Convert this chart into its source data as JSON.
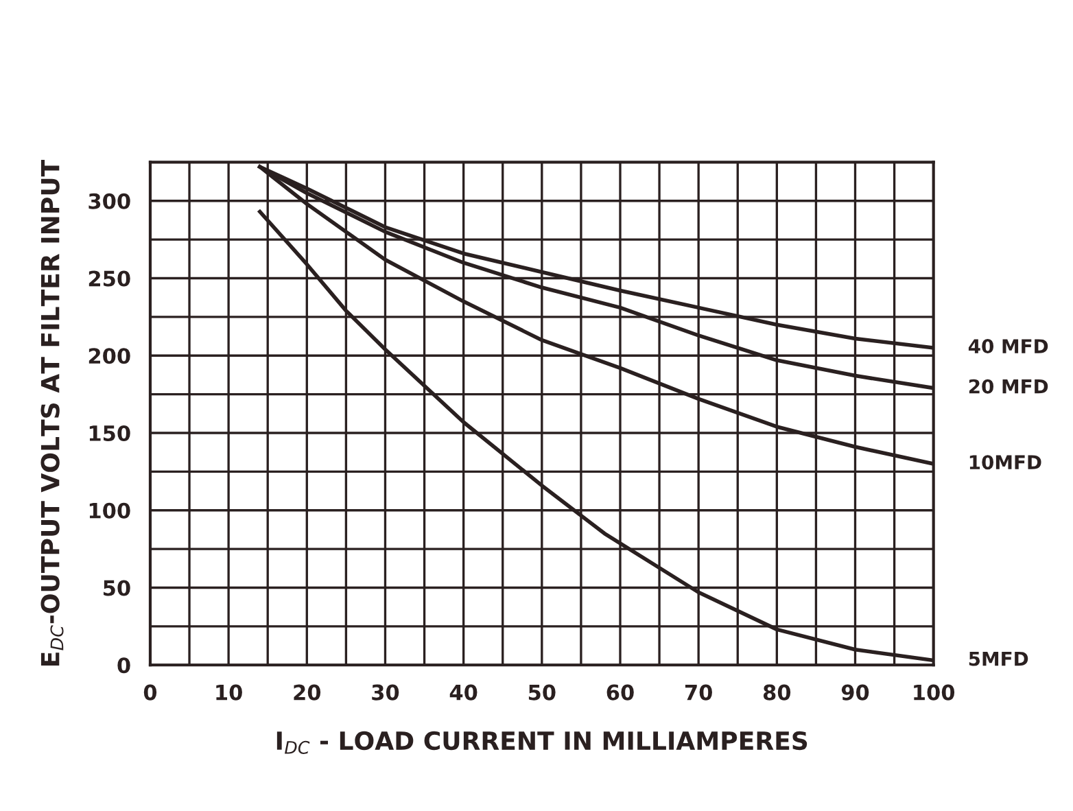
{
  "chart_data": {
    "type": "line",
    "xlabel": "I$_{DC}$ - LOAD CURRENT IN MILLIAMPERES",
    "ylabel": "E$_{DC}$-OUTPUT VOLTS AT FILTER INPUT",
    "series": [
      {
        "name": "40 MFD",
        "color": "#2a2020",
        "x": [
          14,
          20,
          30,
          40,
          50,
          60,
          70,
          80,
          90,
          100
        ],
        "values": [
          322,
          308,
          283,
          266,
          254,
          242,
          231,
          220,
          211,
          205
        ]
      },
      {
        "name": "20 MFD",
        "color": "#2a2020",
        "x": [
          14,
          20,
          30,
          40,
          50,
          60,
          70,
          80,
          90,
          100
        ],
        "values": [
          322,
          305,
          280,
          260,
          244,
          231,
          213,
          197,
          187,
          179
        ]
      },
      {
        "name": "10MFD",
        "color": "#2a2020",
        "x": [
          14,
          20,
          30,
          40,
          50,
          60,
          70,
          80,
          90,
          100
        ],
        "values": [
          322,
          298,
          262,
          235,
          210,
          192,
          172,
          154,
          141,
          130
        ]
      },
      {
        "name": "5MFD",
        "color": "#2a2020",
        "x": [
          14,
          20,
          25,
          30,
          40,
          50,
          58,
          70,
          80,
          90,
          100
        ],
        "values": [
          293,
          259,
          229,
          204,
          157,
          116,
          85,
          47,
          23,
          10,
          3
        ]
      }
    ],
    "xlim": [
      0,
      100
    ],
    "ylim": [
      0,
      325
    ],
    "xticks": [
      0,
      {
        "value": 5,
        "label": null
      },
      10,
      {
        "value": 15,
        "label": null
      },
      20,
      {
        "value": 25,
        "label": null
      },
      30,
      {
        "value": 35,
        "label": null
      },
      40,
      {
        "value": 45,
        "label": null
      },
      50,
      {
        "value": 55,
        "label": null
      },
      60,
      {
        "value": 65,
        "label": null
      },
      70,
      {
        "value": 75,
        "label": null
      },
      80,
      {
        "value": 85,
        "label": null
      },
      90,
      {
        "value": 95,
        "label": null
      },
      100
    ],
    "yticks": [
      0,
      {
        "value": 25,
        "label": null
      },
      50,
      {
        "value": 75,
        "label": null
      },
      100,
      {
        "value": 125,
        "label": null
      },
      150,
      {
        "value": 175,
        "label": null
      },
      200,
      {
        "value": 225,
        "label": null
      },
      250,
      {
        "value": 275,
        "label": null
      },
      300,
      {
        "value": 325,
        "label": null
      }
    ],
    "grid": true,
    "legend": false,
    "marker": "none",
    "line_style": "solid"
  }
}
